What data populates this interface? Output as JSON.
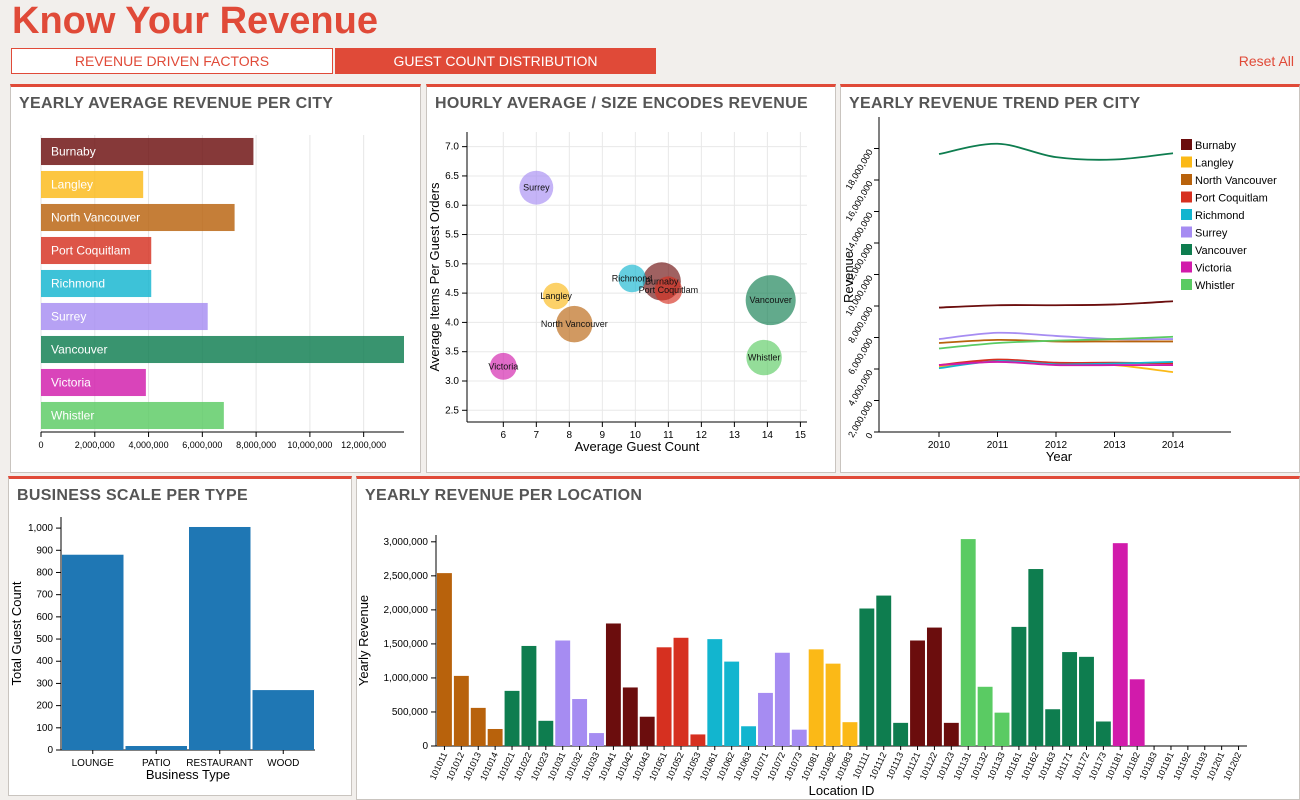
{
  "header": {
    "title": "Know Your Revenue",
    "tabs": [
      {
        "label": "REVENUE DRIVEN FACTORS",
        "active": false
      },
      {
        "label": "GUEST COUNT DISTRIBUTION",
        "active": true
      }
    ],
    "reset_label": "Reset All"
  },
  "colors": {
    "accent": "#e04a38",
    "Burnaby": "#6b0d0d",
    "Langley": "#fbb917",
    "North Vancouver": "#b8620c",
    "Port Coquitlam": "#d63020",
    "Richmond": "#12b5cf",
    "Surrey": "#a68cf2",
    "Vancouver": "#0e7d4f",
    "Victoria": "#d11bab",
    "Whistler": "#5acb63",
    "bar_blue": "#1f77b4"
  },
  "panels": {
    "p1": "YEARLY AVERAGE REVENUE PER CITY",
    "p2": "HOURLY AVERAGE / SIZE ENCODES REVENUE",
    "p3": "YEARLY REVENUE TREND PER CITY",
    "p4": "BUSINESS SCALE PER TYPE",
    "p5": "YEARLY REVENUE PER LOCATION"
  },
  "chart_data": [
    {
      "type": "bar",
      "orientation": "horizontal",
      "title": "YEARLY AVERAGE REVENUE PER CITY",
      "categories": [
        "Burnaby",
        "Langley",
        "North Vancouver",
        "Port Coquitlam",
        "Richmond",
        "Surrey",
        "Vancouver",
        "Victoria",
        "Whistler"
      ],
      "values": [
        7900000,
        3800000,
        7200000,
        4100000,
        4100000,
        6200000,
        13500000,
        3900000,
        6800000
      ],
      "xlim": [
        0,
        13500000
      ],
      "xticks": [
        0,
        2000000,
        4000000,
        6000000,
        8000000,
        10000000,
        12000000
      ],
      "xtick_labels": [
        "0",
        "2,000,000",
        "4,000,000",
        "6,000,000",
        "8,000,000",
        "10,000,000",
        "12,000,000"
      ]
    },
    {
      "type": "scatter",
      "title": "HOURLY AVERAGE / SIZE ENCODES REVENUE",
      "xlabel": "Average Guest Count",
      "ylabel": "Average Items Per Guest Orders",
      "xlim": [
        4.9,
        15.2
      ],
      "ylim": [
        2.3,
        7.25
      ],
      "xticks": [
        6,
        7,
        8,
        9,
        10,
        11,
        12,
        13,
        14,
        15
      ],
      "yticks": [
        2.5,
        3.0,
        3.5,
        4.0,
        4.5,
        5.0,
        5.5,
        6.0,
        6.5,
        7.0
      ],
      "ytick_labels": [
        "2.5",
        "3.0",
        "3.5",
        "4.0",
        "4.5",
        "5.0",
        "5.5",
        "6.0",
        "6.5",
        "7.0"
      ],
      "grid": true,
      "points": [
        {
          "name": "Surrey",
          "x": 7.0,
          "y": 6.3,
          "size": 6.2
        },
        {
          "name": "Langley",
          "x": 7.6,
          "y": 4.45,
          "size": 3.8
        },
        {
          "name": "North Vancouver",
          "x": 8.15,
          "y": 3.97,
          "size": 7.2
        },
        {
          "name": "Victoria",
          "x": 6.0,
          "y": 3.25,
          "size": 3.9
        },
        {
          "name": "Richmond",
          "x": 9.9,
          "y": 4.75,
          "size": 4.1
        },
        {
          "name": "Port Coquitlam",
          "x": 11.0,
          "y": 4.55,
          "size": 4.1
        },
        {
          "name": "Burnaby",
          "x": 10.8,
          "y": 4.7,
          "size": 7.9
        },
        {
          "name": "Vancouver",
          "x": 14.1,
          "y": 4.38,
          "size": 13.5
        },
        {
          "name": "Whistler",
          "x": 13.9,
          "y": 3.4,
          "size": 6.8
        }
      ]
    },
    {
      "type": "line",
      "title": "YEARLY REVENUE TREND PER CITY",
      "xlabel": "Year",
      "ylabel": "Revenue",
      "x": [
        2010,
        2011,
        2012,
        2013,
        2014
      ],
      "ylim": [
        0,
        20000000
      ],
      "yticks": [
        0,
        2000000,
        4000000,
        6000000,
        8000000,
        10000000,
        12000000,
        14000000,
        16000000,
        18000000
      ],
      "ytick_labels": [
        "0",
        "2,000,000",
        "4,000,000",
        "6,000,000",
        "8,000,000",
        "10,000,000",
        "12,000,000",
        "14,000,000",
        "16,000,000",
        "18,000,000"
      ],
      "legend": "top-right",
      "series": [
        {
          "name": "Burnaby",
          "values": [
            7900000,
            8050000,
            8050000,
            8100000,
            8300000
          ]
        },
        {
          "name": "Langley",
          "values": [
            4150000,
            4500000,
            4350000,
            4250000,
            3800000
          ]
        },
        {
          "name": "North Vancouver",
          "values": [
            5650000,
            5850000,
            5750000,
            5750000,
            5750000
          ]
        },
        {
          "name": "Port Coquitlam",
          "values": [
            4250000,
            4600000,
            4400000,
            4400000,
            4350000
          ]
        },
        {
          "name": "Richmond",
          "values": [
            4050000,
            4500000,
            4300000,
            4350000,
            4450000
          ]
        },
        {
          "name": "Surrey",
          "values": [
            5900000,
            6300000,
            6100000,
            5900000,
            5900000
          ]
        },
        {
          "name": "Vancouver",
          "values": [
            17650000,
            18300000,
            17450000,
            17300000,
            17700000
          ]
        },
        {
          "name": "Victoria",
          "values": [
            4250000,
            4450000,
            4250000,
            4250000,
            4250000
          ]
        },
        {
          "name": "Whistler",
          "values": [
            5300000,
            5650000,
            5800000,
            5900000,
            6050000
          ]
        }
      ]
    },
    {
      "type": "bar",
      "title": "BUSINESS SCALE PER TYPE",
      "xlabel": "Business Type",
      "ylabel": "Total Guest Count",
      "categories": [
        "LOUNGE",
        "PATIO",
        "RESTAURANT",
        "WOOD"
      ],
      "values": [
        880,
        18,
        1005,
        270
      ],
      "ylim": [
        0,
        1050
      ],
      "yticks": [
        0,
        100,
        200,
        300,
        400,
        500,
        600,
        700,
        800,
        900,
        1000
      ],
      "ytick_labels": [
        "0",
        "100",
        "200",
        "300",
        "400",
        "500",
        "600",
        "700",
        "800",
        "900",
        "1,000"
      ]
    },
    {
      "type": "bar",
      "title": "YEARLY REVENUE PER LOCATION",
      "xlabel": "Location ID",
      "ylabel": "Yearly Revenue",
      "ylim": [
        0,
        3100000
      ],
      "yticks": [
        0,
        500000,
        1000000,
        1500000,
        2000000,
        2500000,
        3000000
      ],
      "ytick_labels": [
        "0",
        "500,000",
        "1,000,000",
        "1,500,000",
        "2,000,000",
        "2,500,000",
        "3,000,000"
      ],
      "categories": [
        "101011",
        "101012",
        "101013",
        "101014",
        "101021",
        "101022",
        "101023",
        "101031",
        "101032",
        "101033",
        "101041",
        "101042",
        "101043",
        "101051",
        "101052",
        "101053",
        "101061",
        "101062",
        "101063",
        "101071",
        "101072",
        "101073",
        "101081",
        "101082",
        "101083",
        "101111",
        "101112",
        "101113",
        "101121",
        "101122",
        "101123",
        "101131",
        "101132",
        "101133",
        "101161",
        "101162",
        "101163",
        "101171",
        "101172",
        "101173",
        "101181",
        "101182",
        "101183",
        "101191",
        "101192",
        "101193",
        "101201",
        "101202"
      ],
      "cities": [
        "North Vancouver",
        "North Vancouver",
        "North Vancouver",
        "North Vancouver",
        "Vancouver",
        "Vancouver",
        "Vancouver",
        "Surrey",
        "Surrey",
        "Surrey",
        "Burnaby",
        "Burnaby",
        "Burnaby",
        "Port Coquitlam",
        "Port Coquitlam",
        "Port Coquitlam",
        "Richmond",
        "Richmond",
        "Richmond",
        "Surrey",
        "Surrey",
        "Surrey",
        "Langley",
        "Langley",
        "Langley",
        "Vancouver",
        "Vancouver",
        "Vancouver",
        "Burnaby",
        "Burnaby",
        "Burnaby",
        "Whistler",
        "Whistler",
        "Whistler",
        "Vancouver",
        "Vancouver",
        "Vancouver",
        "Vancouver",
        "Vancouver",
        "Vancouver",
        "Victoria",
        "Victoria",
        "Victoria",
        "Vancouver",
        "Vancouver",
        "Vancouver",
        "Vancouver",
        "Vancouver"
      ],
      "values": [
        2540000,
        1030000,
        560000,
        250000,
        810000,
        1470000,
        370000,
        1550000,
        690000,
        190000,
        1800000,
        860000,
        430000,
        1450000,
        1590000,
        170000,
        1570000,
        1240000,
        290000,
        780000,
        1370000,
        240000,
        1420000,
        1210000,
        350000,
        2020000,
        2210000,
        340000,
        1550000,
        1740000,
        340000,
        3040000,
        870000,
        490000,
        1750000,
        2600000,
        540000,
        1380000,
        1310000,
        360000,
        2980000,
        980000,
        0,
        0,
        0,
        0,
        0,
        0
      ]
    }
  ]
}
